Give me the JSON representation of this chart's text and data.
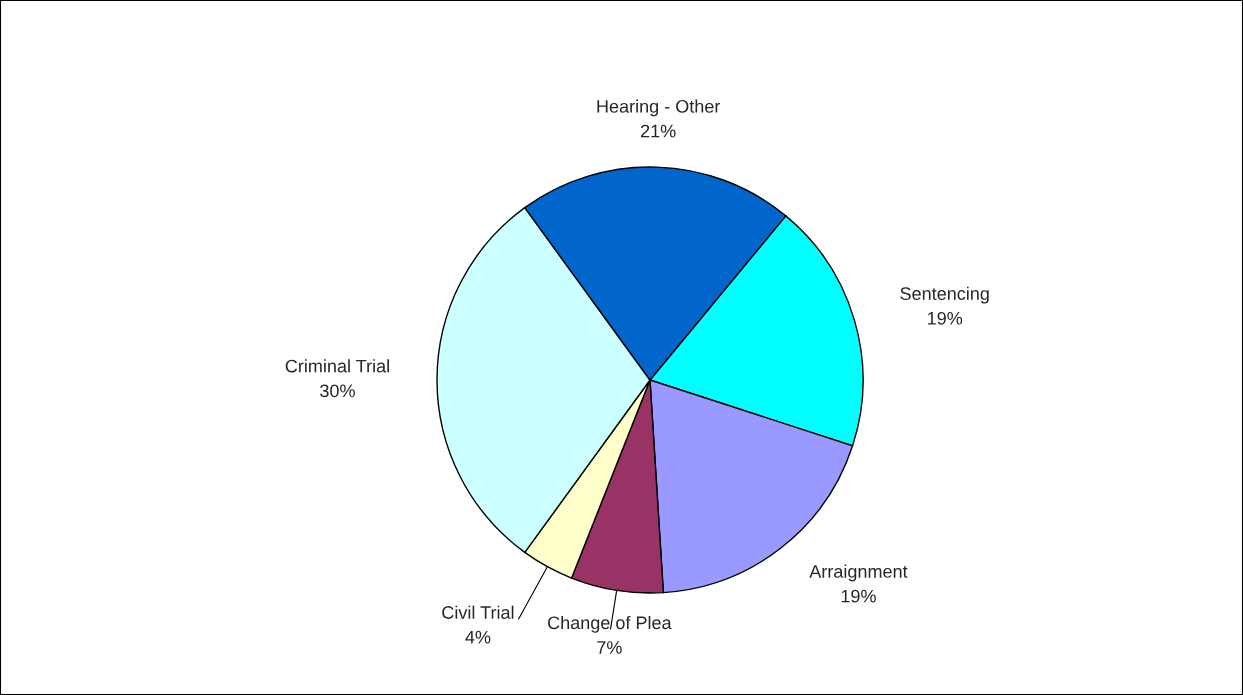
{
  "chart_data": {
    "type": "pie",
    "categories": [
      "Sentencing",
      "Arraignment",
      "Change of Plea",
      "Civil Trial",
      "Criminal Trial",
      "Hearing - Other"
    ],
    "values": [
      19,
      19,
      7,
      4,
      30,
      21
    ],
    "value_labels": [
      "19%",
      "19%",
      "7%",
      "4%",
      "30%",
      "21%"
    ],
    "colors": [
      "#00ffff",
      "#9999ff",
      "#993366",
      "#ffffcc",
      "#ccffff",
      "#0066cc"
    ]
  }
}
